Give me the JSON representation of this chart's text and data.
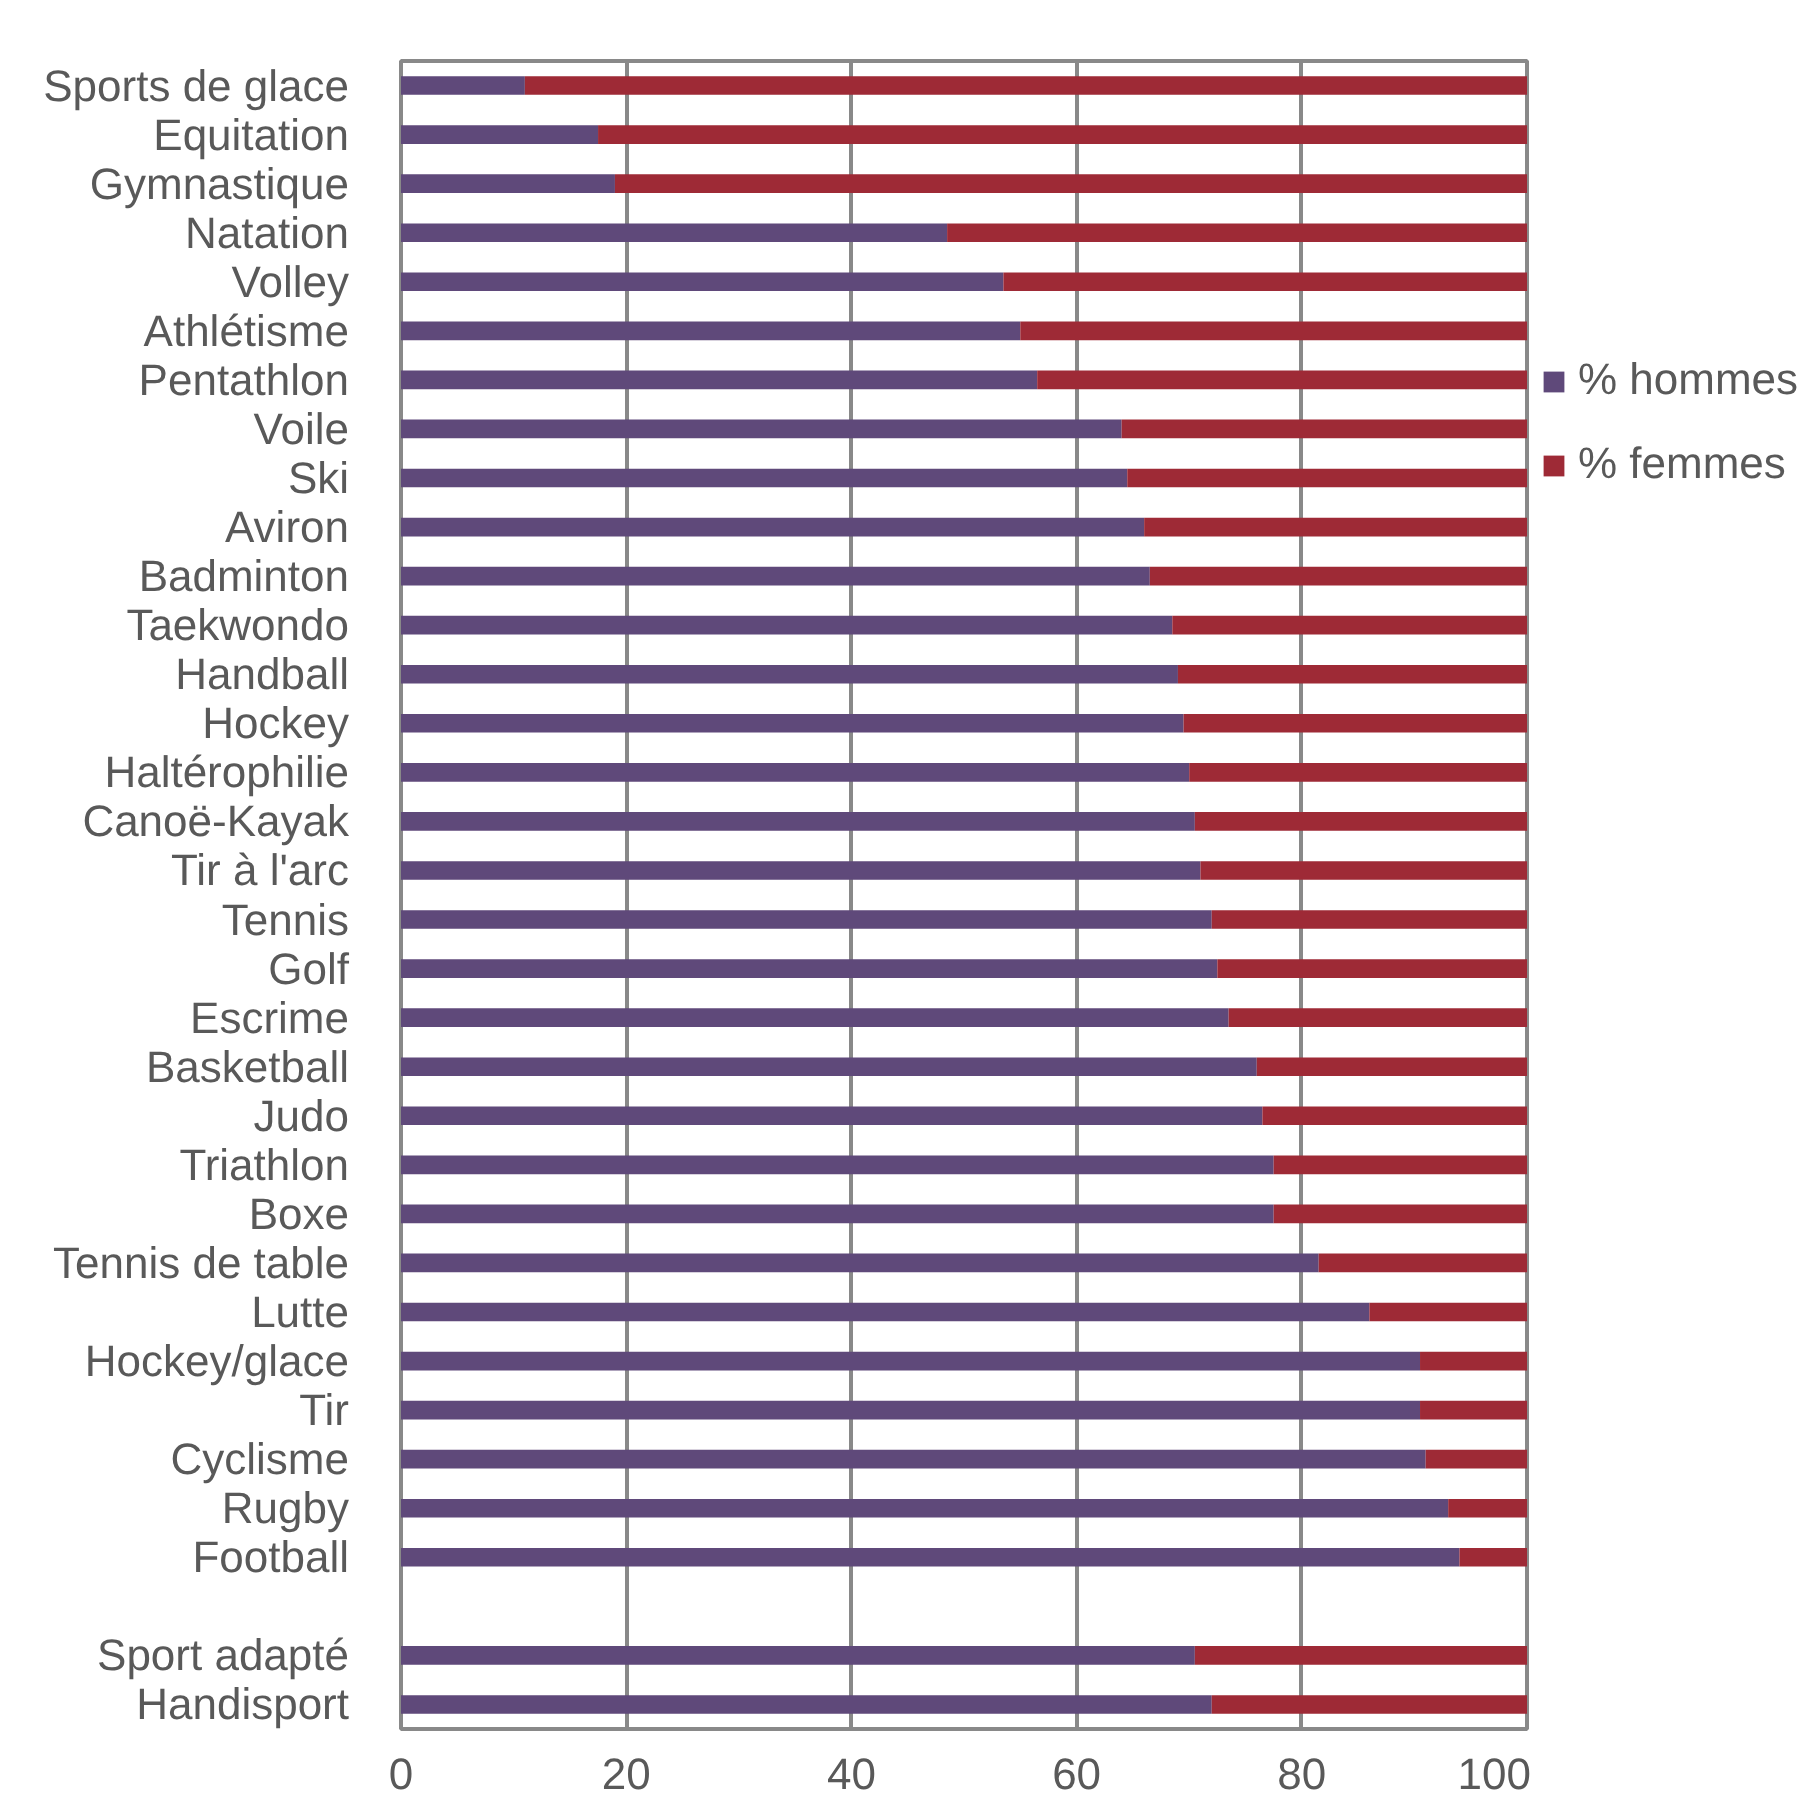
{
  "chart_data": {
    "type": "bar",
    "orientation": "horizontal",
    "stacked": true,
    "categories": [
      "Sports de glace",
      "Equitation",
      "Gymnastique",
      "Natation",
      "Volley",
      "Athlétisme",
      "Pentathlon",
      "Voile",
      "Ski",
      "Aviron",
      "Badminton",
      "Taekwondo",
      "Handball",
      "Hockey",
      "Haltérophilie",
      "Canoë-Kayak",
      "Tir à l'arc",
      "Tennis",
      "Golf",
      "Escrime",
      "Basketball",
      "Judo",
      "Triathlon",
      "Boxe",
      "Tennis de table",
      "Lutte",
      "Hockey/glace",
      "Tir",
      "Cyclisme",
      "Rugby",
      "Football",
      null,
      "Sport adapté",
      "Handisport"
    ],
    "series": [
      {
        "name": "% hommes",
        "color": "#5f497a",
        "values": [
          11,
          17.5,
          19,
          48.5,
          53.5,
          55,
          56.5,
          64,
          64.5,
          66,
          66.5,
          68.5,
          69,
          69.5,
          70,
          70.5,
          71,
          72,
          72.5,
          73.5,
          76,
          76.5,
          77.5,
          77.5,
          81.5,
          86,
          90.5,
          90.5,
          91,
          93,
          94,
          null,
          70.5,
          72
        ]
      },
      {
        "name": "% femmes",
        "color": "#9e2a36",
        "values": [
          89,
          82.5,
          81,
          51.5,
          46.5,
          45,
          43.5,
          36,
          35.5,
          34,
          33.5,
          31.5,
          31,
          30.5,
          30,
          29.5,
          29,
          28,
          27.5,
          26.5,
          24,
          23.5,
          22.5,
          22.5,
          18.5,
          14,
          9.5,
          9.5,
          9,
          7,
          6,
          null,
          29.5,
          28
        ]
      }
    ],
    "xlim": [
      0,
      100
    ],
    "xticks": [
      0,
      20,
      40,
      60,
      80,
      100
    ],
    "grid": "x",
    "legend": "right"
  }
}
